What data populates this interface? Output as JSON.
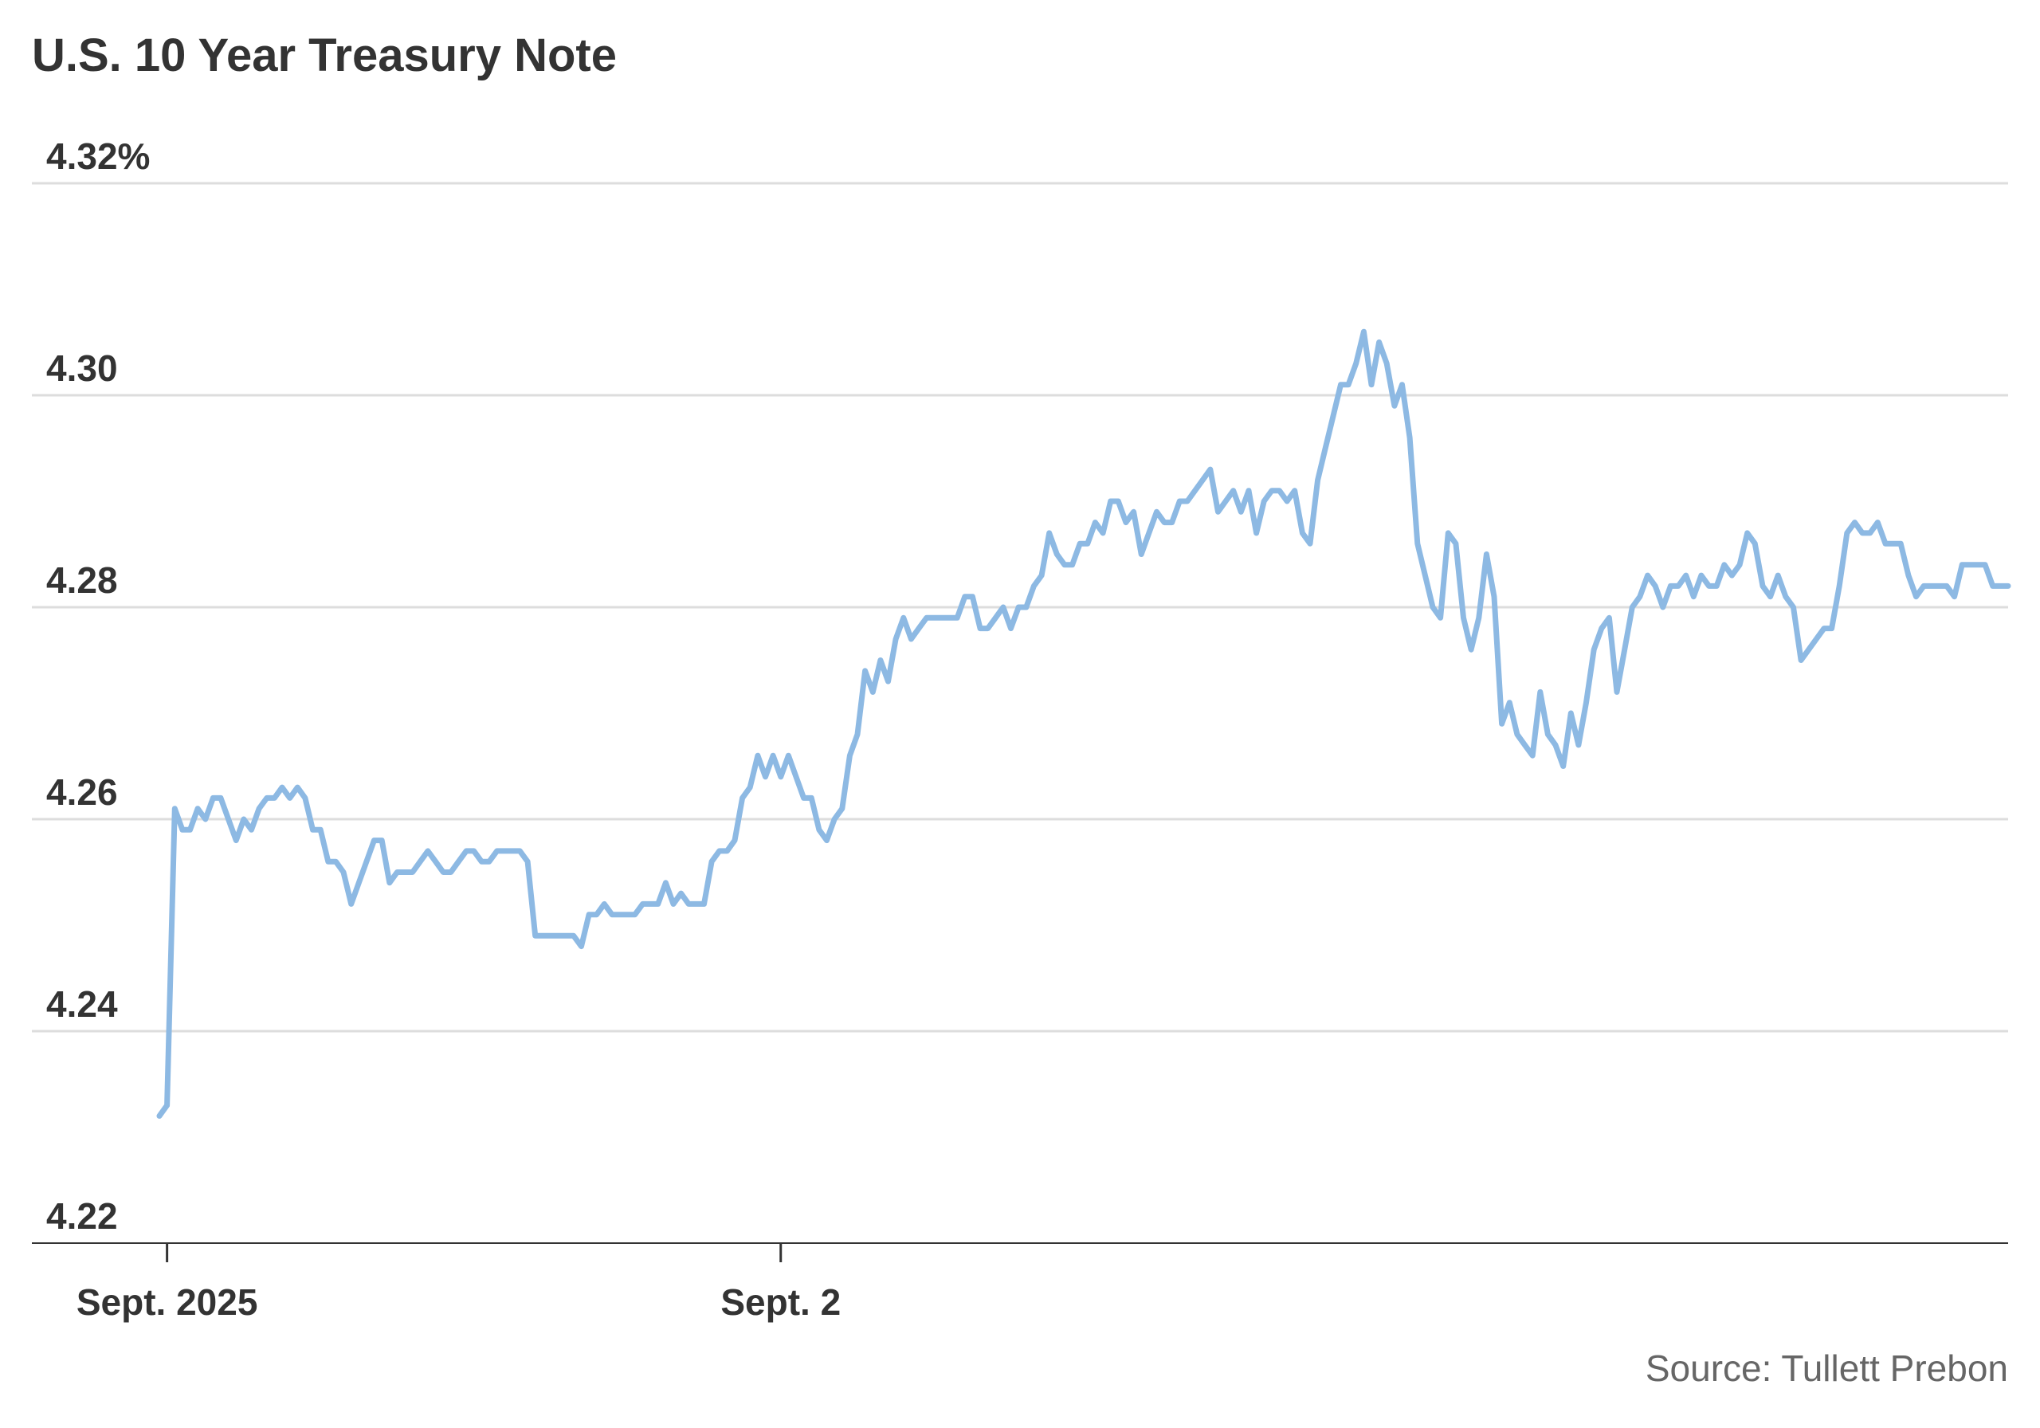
{
  "title": "U.S. 10 Year Treasury Note",
  "source": "Source: Tullett Prebon",
  "colors": {
    "line": "#8db9e3",
    "grid": "#dddddd",
    "axis": "#333333",
    "text": "#333333",
    "source": "#666666"
  },
  "chart_data": {
    "type": "line",
    "title": "U.S. 10 Year Treasury Note",
    "xlabel": "",
    "ylabel": "",
    "ylim": [
      4.22,
      4.32
    ],
    "y_ticks": [
      4.22,
      4.24,
      4.26,
      4.28,
      4.3,
      4.32
    ],
    "y_tick_labels": [
      "4.22",
      "4.24",
      "4.26",
      "4.28",
      "4.30",
      "4.32%"
    ],
    "x_ticks": [
      {
        "index": 1,
        "label": "Sept. 2025"
      },
      {
        "index": 81,
        "label": "Sept. 2"
      }
    ],
    "grid": true,
    "legend": "none",
    "series": [
      {
        "values": [
          4.232,
          4.233,
          4.261,
          4.259,
          4.259,
          4.261,
          4.26,
          4.262,
          4.262,
          4.26,
          4.258,
          4.26,
          4.259,
          4.261,
          4.262,
          4.262,
          4.263,
          4.262,
          4.263,
          4.262,
          4.259,
          4.259,
          4.256,
          4.256,
          4.255,
          4.252,
          4.254,
          4.256,
          4.258,
          4.258,
          4.254,
          4.255,
          4.255,
          4.255,
          4.256,
          4.257,
          4.256,
          4.255,
          4.255,
          4.256,
          4.257,
          4.257,
          4.256,
          4.256,
          4.257,
          4.257,
          4.257,
          4.257,
          4.256,
          4.249,
          4.249,
          4.249,
          4.249,
          4.249,
          4.249,
          4.248,
          4.251,
          4.251,
          4.252,
          4.251,
          4.251,
          4.251,
          4.251,
          4.252,
          4.252,
          4.252,
          4.254,
          4.252,
          4.253,
          4.252,
          4.252,
          4.252,
          4.256,
          4.257,
          4.257,
          4.258,
          4.262,
          4.263,
          4.266,
          4.264,
          4.266,
          4.264,
          4.266,
          4.264,
          4.262,
          4.262,
          4.259,
          4.258,
          4.26,
          4.261,
          4.266,
          4.268,
          4.274,
          4.272,
          4.275,
          4.273,
          4.277,
          4.279,
          4.277,
          4.278,
          4.279,
          4.279,
          4.279,
          4.279,
          4.279,
          4.281,
          4.281,
          4.278,
          4.278,
          4.279,
          4.28,
          4.278,
          4.28,
          4.28,
          4.282,
          4.283,
          4.287,
          4.285,
          4.284,
          4.284,
          4.286,
          4.286,
          4.288,
          4.287,
          4.29,
          4.29,
          4.288,
          4.289,
          4.285,
          4.287,
          4.289,
          4.288,
          4.288,
          4.29,
          4.29,
          4.291,
          4.292,
          4.293,
          4.289,
          4.29,
          4.291,
          4.289,
          4.291,
          4.287,
          4.29,
          4.291,
          4.291,
          4.29,
          4.291,
          4.287,
          4.286,
          4.292,
          4.295,
          4.298,
          4.301,
          4.301,
          4.303,
          4.306,
          4.301,
          4.305,
          4.303,
          4.299,
          4.301,
          4.296,
          4.286,
          4.283,
          4.28,
          4.279,
          4.287,
          4.286,
          4.279,
          4.276,
          4.279,
          4.285,
          4.281,
          4.269,
          4.271,
          4.268,
          4.267,
          4.266,
          4.272,
          4.268,
          4.267,
          4.265,
          4.27,
          4.267,
          4.271,
          4.276,
          4.278,
          4.279,
          4.272,
          4.276,
          4.28,
          4.281,
          4.283,
          4.282,
          4.28,
          4.282,
          4.282,
          4.283,
          4.281,
          4.283,
          4.282,
          4.282,
          4.284,
          4.283,
          4.284,
          4.287,
          4.286,
          4.282,
          4.281,
          4.283,
          4.281,
          4.28,
          4.275,
          4.276,
          4.277,
          4.278,
          4.278,
          4.282,
          4.287,
          4.288,
          4.287,
          4.287,
          4.288,
          4.286,
          4.286,
          4.286,
          4.283,
          4.281,
          4.282,
          4.282,
          4.282,
          4.282,
          4.281,
          4.284,
          4.284,
          4.284,
          4.284,
          4.282,
          4.282,
          4.282
        ]
      }
    ]
  }
}
